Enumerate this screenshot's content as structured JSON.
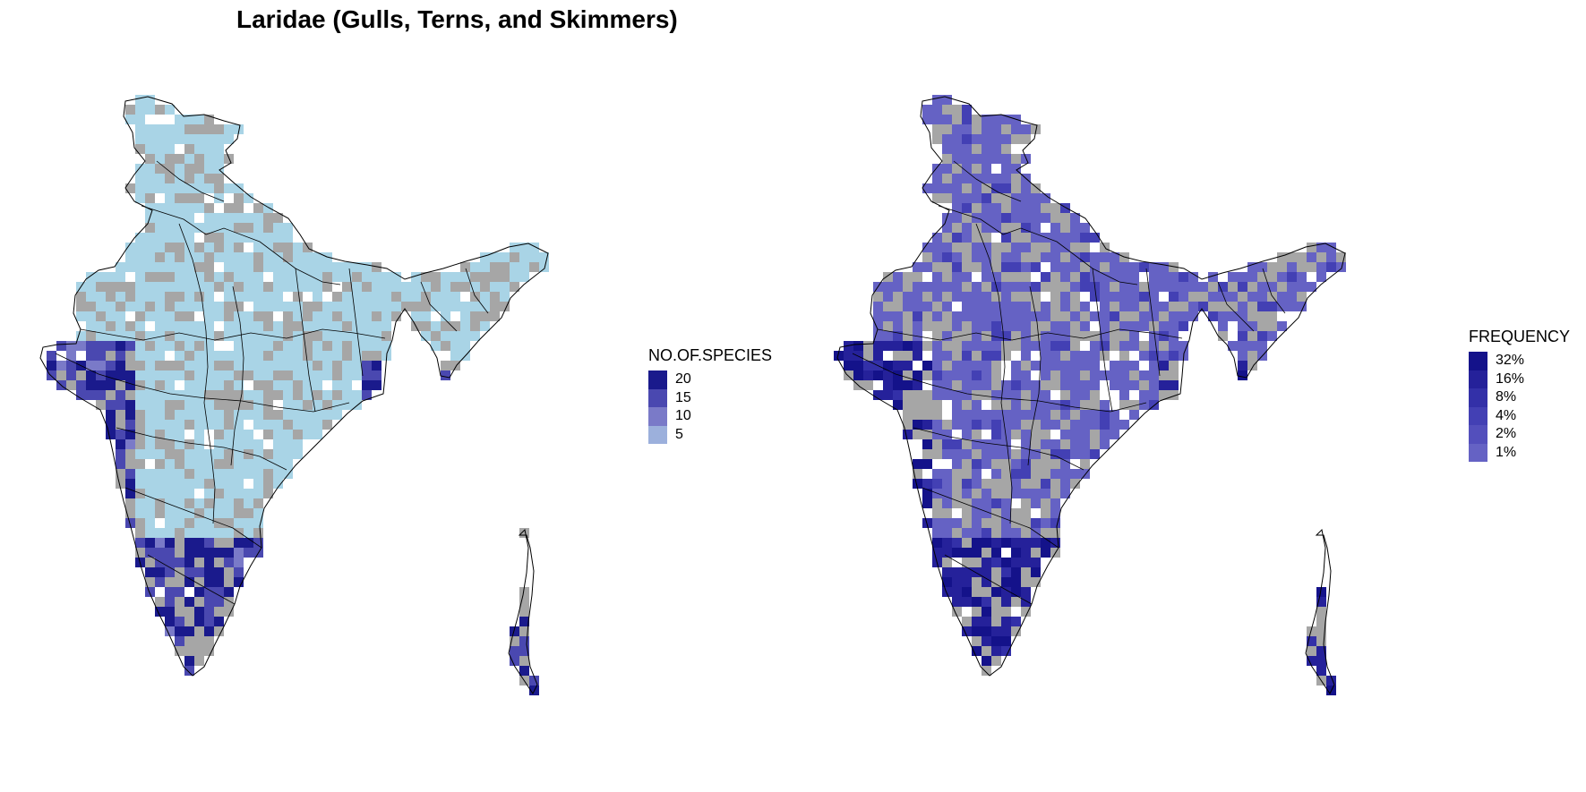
{
  "title": "Laridae (Gulls, Terns, and Skimmers)",
  "colors": {
    "no_data": "#a6a6a6",
    "low": "#a9d4e6",
    "boundary": "#000000"
  },
  "left_map": {
    "legend": {
      "title": "NO.OF.SPECIES",
      "items": [
        {
          "label": "20",
          "color": "#1a1a8c"
        },
        {
          "label": "15",
          "color": "#4a48b0"
        },
        {
          "label": "10",
          "color": "#7a7ac8"
        },
        {
          "label": "5",
          "color": "#9cb0dc"
        }
      ]
    }
  },
  "right_map": {
    "legend": {
      "title": "FREQUENCY",
      "items": [
        {
          "label": "32%",
          "color": "#14128a"
        },
        {
          "label": "16%",
          "color": "#25219a"
        },
        {
          "label": "8%",
          "color": "#3330a8"
        },
        {
          "label": "4%",
          "color": "#4340b4"
        },
        {
          "label": "2%",
          "color": "#534fbc"
        },
        {
          "label": "1%",
          "color": "#6562c4"
        }
      ]
    }
  }
}
